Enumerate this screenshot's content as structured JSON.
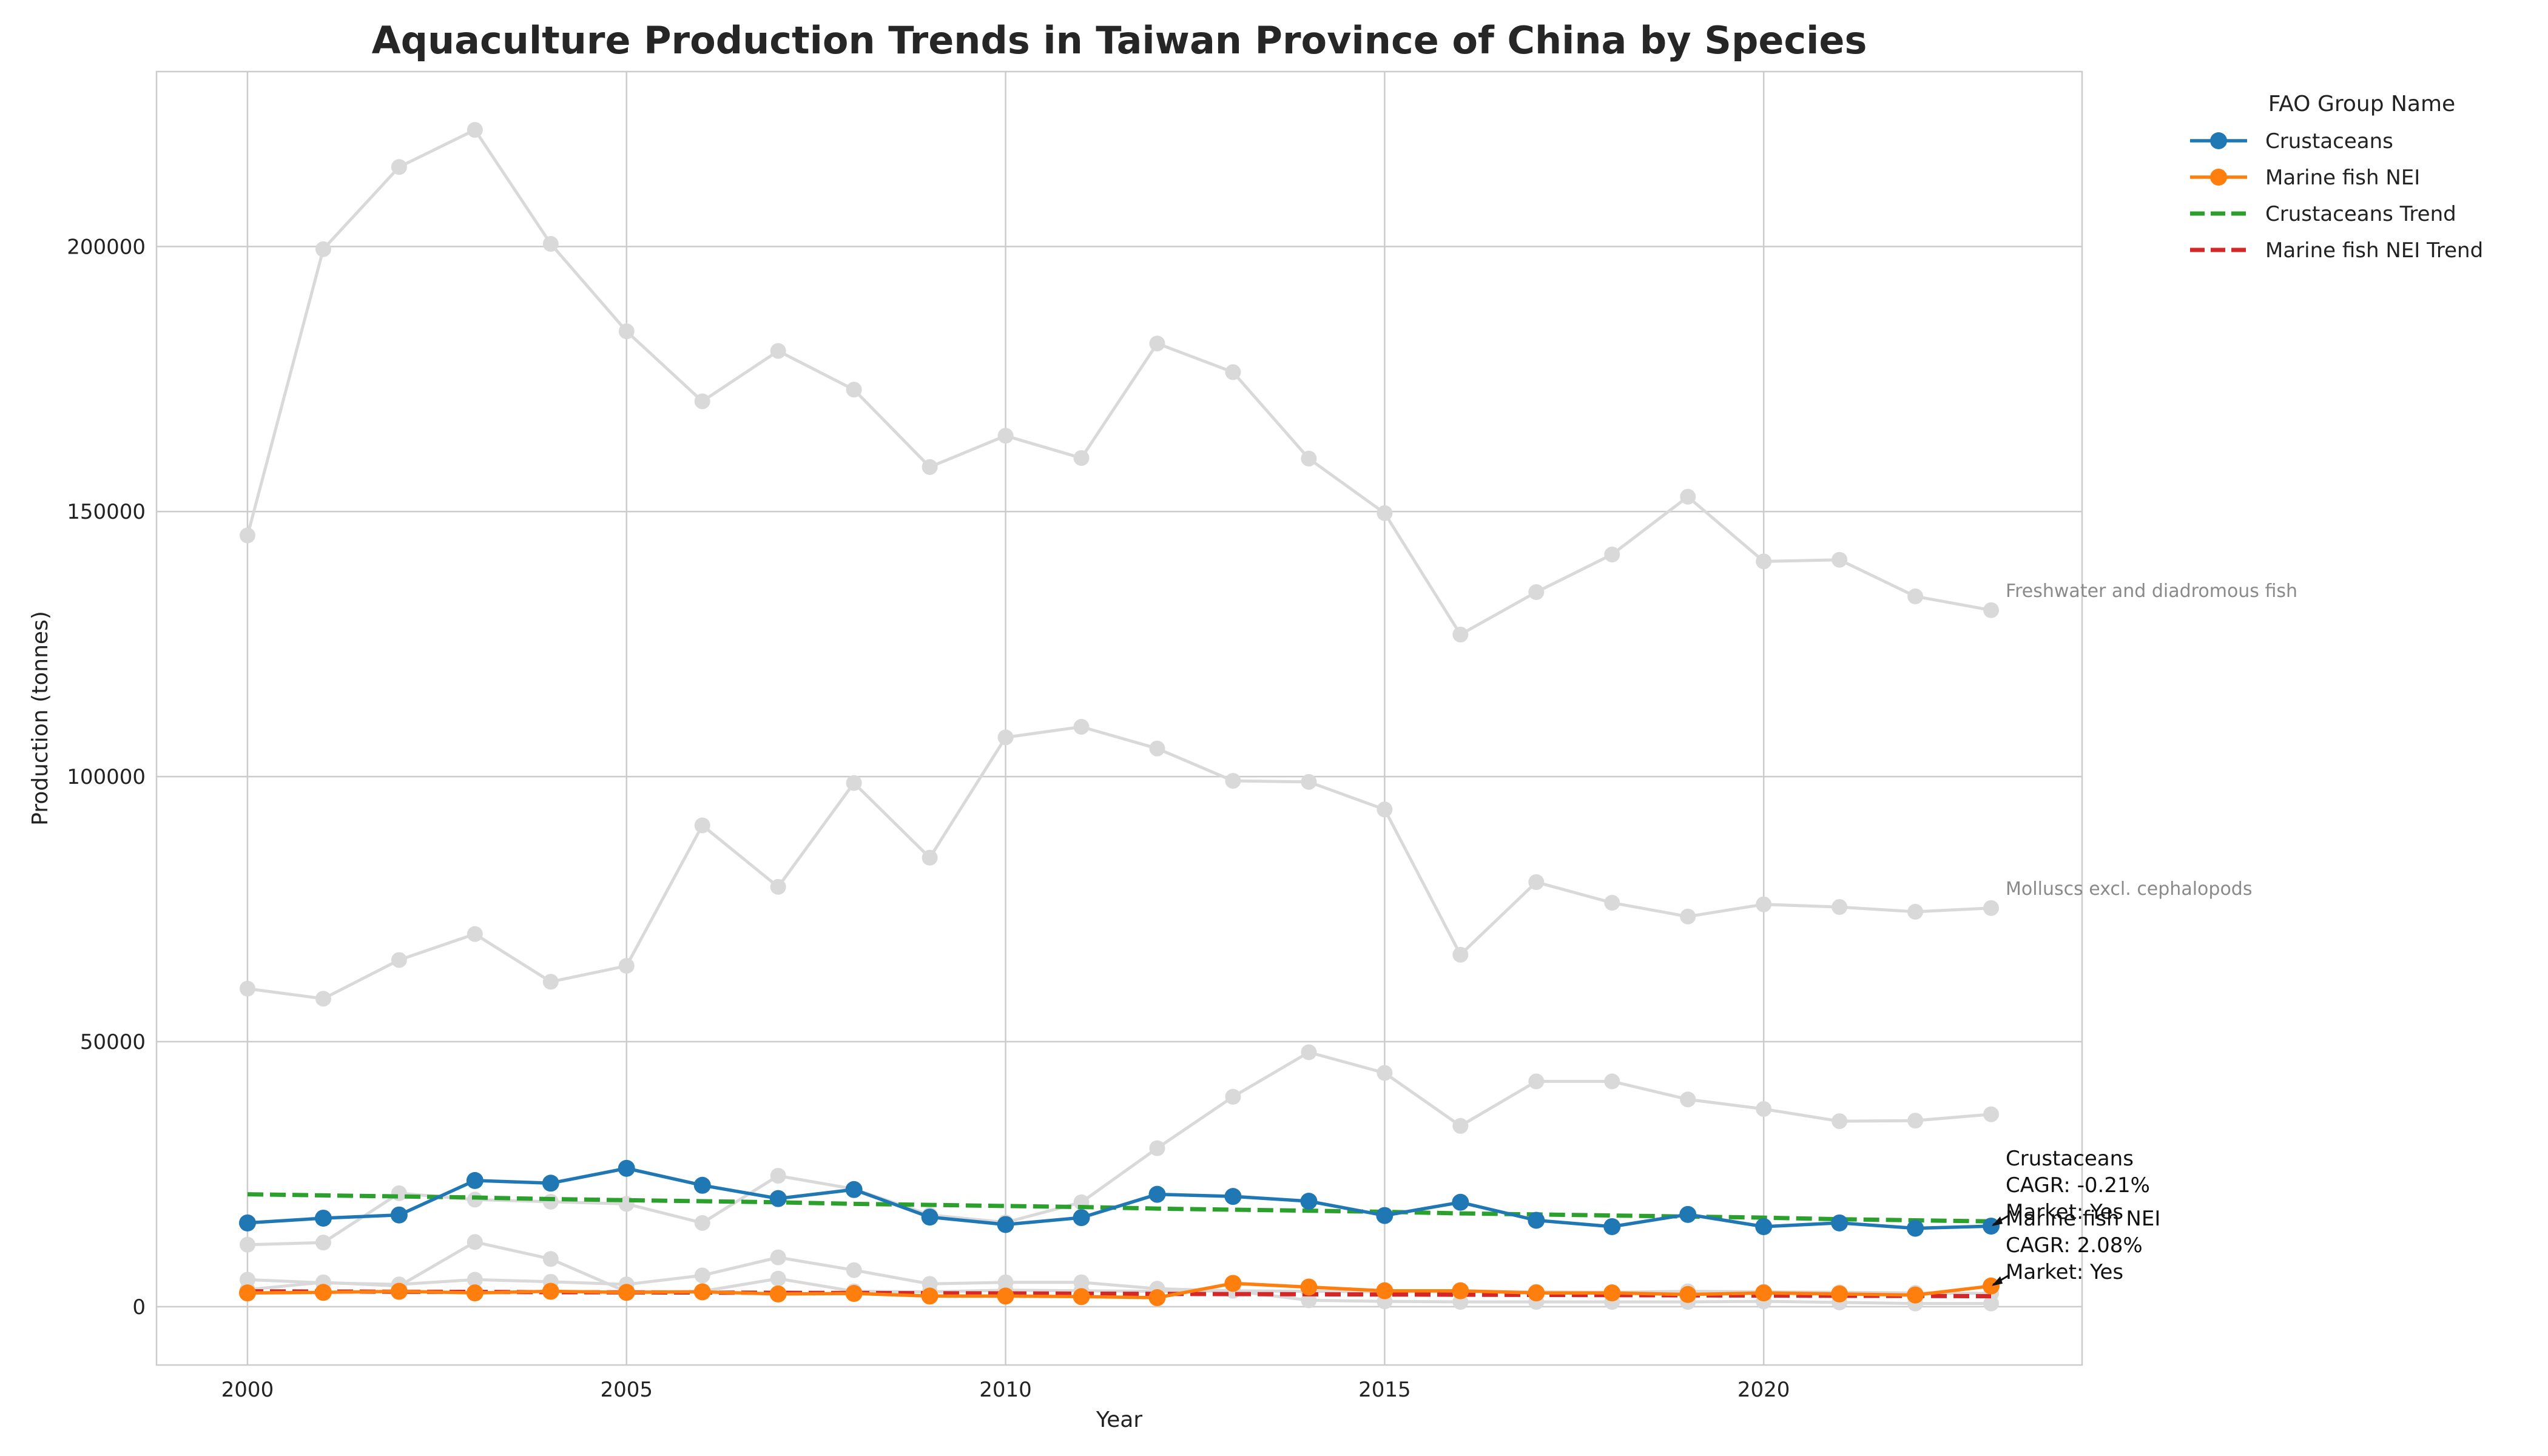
{
  "chart_data": {
    "type": "line",
    "title": "Aquaculture Production Trends in Taiwan Province of China by Species",
    "xlabel": "Year",
    "ylabel": "Production (tonnes)",
    "xlim": [
      1998.8,
      2024.2
    ],
    "ylim": [
      -11000,
      233000
    ],
    "x_ticks": [
      2000,
      2005,
      2010,
      2015,
      2020
    ],
    "y_ticks": [
      0,
      50000,
      100000,
      150000,
      200000
    ],
    "grid": true,
    "legend": {
      "title": "FAO Group Name",
      "placement": "outside-top-right",
      "entries": [
        "Crustaceans",
        "Marine fish NEI",
        "Crustaceans Trend",
        "Marine fish NEI Trend"
      ]
    },
    "x": [
      2000,
      2001,
      2002,
      2003,
      2004,
      2005,
      2006,
      2007,
      2008,
      2009,
      2010,
      2011,
      2012,
      2013,
      2014,
      2015,
      2016,
      2017,
      2018,
      2019,
      2020,
      2021,
      2022,
      2023
    ],
    "series": [
      {
        "name": "Crustaceans",
        "color": "#1f77b4",
        "style": "solid-markers",
        "values": [
          15800,
          16700,
          17300,
          23800,
          23300,
          26100,
          22900,
          20400,
          22100,
          16900,
          15500,
          16800,
          21200,
          20800,
          19900,
          17200,
          19700,
          16300,
          15100,
          17400,
          15100,
          15800,
          14800,
          15200
        ]
      },
      {
        "name": "Marine fish NEI",
        "color": "#ff7f0e",
        "style": "solid-markers",
        "values": [
          2600,
          2700,
          2900,
          2600,
          2900,
          2700,
          2800,
          2400,
          2500,
          2000,
          2000,
          1900,
          1700,
          4400,
          3700,
          3000,
          3000,
          2600,
          2600,
          2300,
          2600,
          2400,
          2200,
          3900
        ]
      },
      {
        "name": "Crustaceans Trend",
        "color": "#2ca02c",
        "style": "dashed",
        "values": [
          21200,
          21000,
          20800,
          20600,
          20300,
          20100,
          19900,
          19700,
          19400,
          19200,
          19000,
          18800,
          18500,
          18300,
          18100,
          17900,
          17600,
          17400,
          17200,
          17000,
          16800,
          16500,
          16300,
          16100
        ]
      },
      {
        "name": "Marine fish NEI Trend",
        "color": "#d62728",
        "style": "dashed",
        "values": [
          2900,
          2860,
          2820,
          2780,
          2740,
          2700,
          2660,
          2620,
          2580,
          2540,
          2500,
          2460,
          2420,
          2380,
          2340,
          2300,
          2260,
          2220,
          2180,
          2140,
          2100,
          2060,
          2020,
          1980
        ]
      }
    ],
    "background_series": [
      {
        "label": "Freshwater and diadromous fish",
        "color": "#d9d9d9",
        "values": [
          145500,
          199500,
          215000,
          222000,
          200500,
          184000,
          170800,
          180300,
          173000,
          158400,
          164300,
          160100,
          181700,
          176300,
          160000,
          149700,
          126800,
          134800,
          141900,
          152800,
          140600,
          140900,
          134000,
          131400
        ]
      },
      {
        "label": "Molluscs excl. cephalopods",
        "color": "#d9d9d9",
        "values": [
          60000,
          58100,
          65400,
          70300,
          61300,
          64300,
          90800,
          79200,
          98800,
          84700,
          107400,
          109400,
          105300,
          99200,
          99000,
          93800,
          66400,
          80100,
          76200,
          73600,
          75900,
          75400,
          74500,
          75200
        ]
      },
      {
        "label": "",
        "color": "#d9d9d9",
        "values": [
          11700,
          12100,
          21400,
          20200,
          19800,
          19400,
          15800,
          24700,
          22200,
          17300,
          15900,
          19700,
          29900,
          39600,
          48000,
          44100,
          34100,
          42500,
          42500,
          39100,
          37300,
          35000,
          35100,
          36300
        ]
      },
      {
        "label": "",
        "color": "#d9d9d9",
        "values": [
          5100,
          4500,
          4200,
          5100,
          4700,
          4200,
          5900,
          9300,
          6900,
          4300,
          4600,
          4600,
          3400,
          3000,
          1200,
          1000,
          900,
          900,
          900,
          900,
          1000,
          800,
          600,
          600
        ]
      },
      {
        "label": "",
        "color": "#d9d9d9",
        "values": [
          3200,
          4600,
          3900,
          12200,
          9000,
          2800,
          2900,
          5300,
          2900,
          2800,
          3100,
          3000,
          2900,
          3000,
          2900,
          2800,
          2900,
          2800,
          2700,
          2900,
          2800,
          2700,
          2600,
          2500
        ]
      }
    ],
    "annotations": [
      {
        "series": "Crustaceans",
        "x": 2023,
        "y": 15200,
        "lines": [
          "Crustaceans",
          "CAGR: -0.21%",
          "Market: Yes"
        ]
      },
      {
        "series": "Marine fish NEI",
        "x": 2023,
        "y": 3900,
        "lines": [
          "Marine fish NEI",
          "CAGR: 2.08%",
          "Market: Yes"
        ]
      }
    ]
  }
}
